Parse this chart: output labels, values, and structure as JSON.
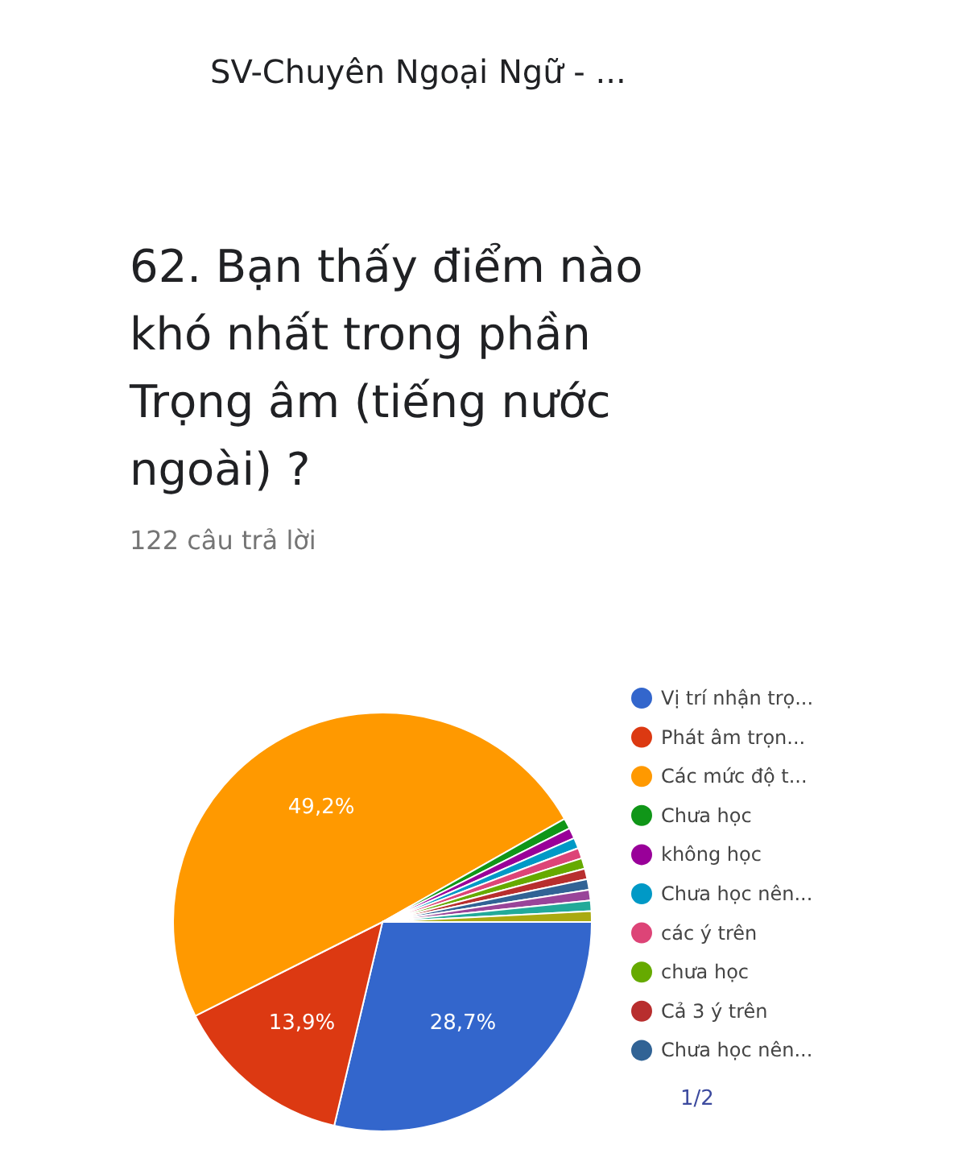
{
  "chart_data": {
    "type": "pie",
    "title": "62. Bạn thấy điểm nào khó nhất trong phần Trọng âm (tiếng nước ngoài) ?",
    "subtitle": "122 câu trả lời",
    "categories": [
      "Vị trí nhận trọ...",
      "Phát âm trọn...",
      "Các mức độ t...",
      "Chưa học",
      "không học",
      "Chưa học nên...",
      "các ý trên",
      "chưa học",
      "Cả 3 ý trên",
      "Chưa học nên...",
      null,
      null,
      null
    ],
    "values": [
      28.7,
      13.9,
      49.2,
      0.82,
      0.82,
      0.82,
      0.82,
      0.82,
      0.82,
      0.82,
      0.82,
      0.82,
      0.82
    ],
    "colors": [
      "#3366cc",
      "#dc3912",
      "#ff9900",
      "#109618",
      "#990099",
      "#0099c6",
      "#dd4477",
      "#66aa00",
      "#b82e2e",
      "#316395",
      "#994499",
      "#22aa99",
      "#aaaa11"
    ],
    "value_labels": [
      "28,7%",
      "13,9%",
      "49,2%",
      null,
      null,
      null,
      null,
      null,
      null,
      null,
      null,
      null,
      null
    ],
    "legend": "right",
    "annotations": [
      "SV-Chuyên Ngoại Ngữ - ...",
      "1/2"
    ]
  }
}
